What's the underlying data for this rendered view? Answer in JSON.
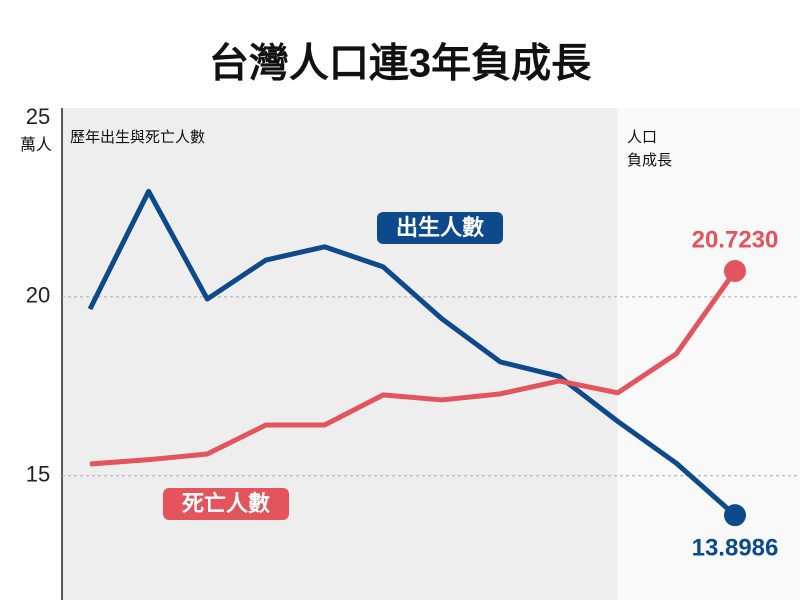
{
  "chart_data": {
    "type": "line",
    "title": "台灣人口連3年負成長",
    "subtitle": "歷年出生與死亡人數",
    "ylabel": "萬人",
    "annotation": [
      "人口",
      "負成長"
    ],
    "categories": [
      null,
      null,
      null,
      null,
      null,
      null,
      null,
      null,
      null,
      null,
      null,
      null
    ],
    "series": [
      {
        "name": "出生人數",
        "color": "#0d4a8c",
        "values": [
          19.66,
          22.95,
          19.94,
          21.03,
          21.4,
          20.84,
          19.39,
          18.18,
          17.78,
          16.52,
          15.35,
          13.8986
        ],
        "value_labels": [
          null,
          null,
          null,
          null,
          null,
          null,
          null,
          null,
          null,
          null,
          null,
          "13.8986"
        ]
      },
      {
        "name": "死亡人數",
        "color": "#e3545c",
        "values": [
          15.33,
          15.45,
          15.61,
          16.42,
          16.42,
          17.26,
          17.12,
          17.29,
          17.65,
          17.32,
          18.41,
          20.723
        ],
        "value_labels": [
          null,
          null,
          null,
          null,
          null,
          null,
          null,
          null,
          null,
          null,
          null,
          "20.7230"
        ]
      }
    ],
    "ylim": [
      11.5,
      25
    ],
    "yticks": [
      15,
      20,
      25
    ],
    "grid": true
  }
}
